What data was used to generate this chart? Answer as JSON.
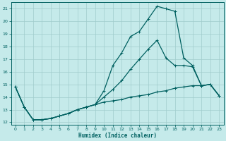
{
  "xlabel": "Humidex (Indice chaleur)",
  "bg_color": "#c5eaea",
  "grid_color": "#a0cccc",
  "line_color": "#006060",
  "xlim": [
    -0.5,
    23.5
  ],
  "ylim": [
    11.8,
    21.5
  ],
  "xticks": [
    0,
    1,
    2,
    3,
    4,
    5,
    6,
    7,
    8,
    9,
    10,
    11,
    12,
    13,
    14,
    15,
    16,
    17,
    18,
    19,
    20,
    21,
    22,
    23
  ],
  "yticks": [
    12,
    13,
    14,
    15,
    16,
    17,
    18,
    19,
    20,
    21
  ],
  "series1_x": [
    0,
    1,
    2,
    3,
    4,
    5,
    6,
    7,
    8,
    9,
    10,
    11,
    12,
    13,
    14,
    15,
    16,
    17,
    18,
    19,
    20,
    21,
    22,
    23
  ],
  "series1_y": [
    14.8,
    13.2,
    12.2,
    12.2,
    12.3,
    12.5,
    12.7,
    13.0,
    13.2,
    13.4,
    13.6,
    13.7,
    13.8,
    14.0,
    14.1,
    14.2,
    14.4,
    14.5,
    14.7,
    14.8,
    14.9,
    14.9,
    15.0,
    14.1
  ],
  "series2_x": [
    0,
    1,
    2,
    3,
    4,
    5,
    6,
    7,
    8,
    9,
    10,
    11,
    12,
    13,
    14,
    15,
    16,
    17,
    18,
    19,
    20,
    21,
    22,
    23
  ],
  "series2_y": [
    14.8,
    13.2,
    12.2,
    12.2,
    12.3,
    12.5,
    12.7,
    13.0,
    13.2,
    13.4,
    14.0,
    14.6,
    15.3,
    16.2,
    17.0,
    17.8,
    18.5,
    17.1,
    16.5,
    16.5,
    16.4,
    14.9,
    15.0,
    14.1
  ],
  "series3_x": [
    0,
    1,
    2,
    3,
    4,
    5,
    6,
    7,
    8,
    9,
    10,
    11,
    12,
    13,
    14,
    15,
    16,
    17,
    18,
    19,
    20,
    21,
    22,
    23
  ],
  "series3_y": [
    14.8,
    13.2,
    12.2,
    12.2,
    12.3,
    12.5,
    12.7,
    13.0,
    13.2,
    13.4,
    14.5,
    16.5,
    17.5,
    18.8,
    19.2,
    20.2,
    21.2,
    21.0,
    20.8,
    17.1,
    16.5,
    14.9,
    15.0,
    14.1
  ]
}
